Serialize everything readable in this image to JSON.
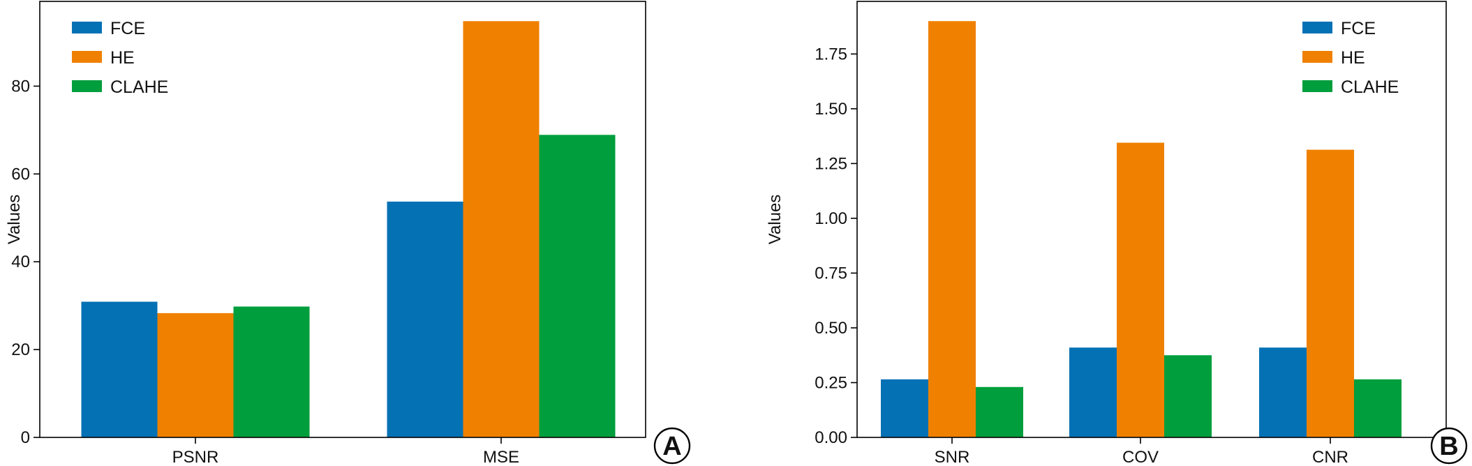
{
  "colors": {
    "FCE": "#0571b5",
    "HE": "#f08000",
    "CLAHE": "#009e3c"
  },
  "chart_data": [
    {
      "type": "bar",
      "panel_label": "A",
      "title": "",
      "xlabel": "",
      "ylabel": "Values",
      "categories": [
        "PSNR",
        "MSE"
      ],
      "series": [
        {
          "name": "FCE",
          "values": [
            30.9,
            53.7
          ]
        },
        {
          "name": "HE",
          "values": [
            28.3,
            94.8
          ]
        },
        {
          "name": "CLAHE",
          "values": [
            29.8,
            68.9
          ]
        }
      ],
      "ylim": [
        0,
        99.3
      ],
      "yticks": [
        0,
        20,
        40,
        60,
        80
      ],
      "ytick_labels": [
        "0",
        "20",
        "40",
        "60",
        "80"
      ],
      "legend": "top-left",
      "grid": false
    },
    {
      "type": "bar",
      "panel_label": "B",
      "title": "",
      "xlabel": "",
      "ylabel": "Values",
      "categories": [
        "SNR",
        "COV",
        "CNR"
      ],
      "series": [
        {
          "name": "FCE",
          "values": [
            0.265,
            0.41,
            0.41
          ]
        },
        {
          "name": "HE",
          "values": [
            1.9,
            1.345,
            1.313
          ]
        },
        {
          "name": "CLAHE",
          "values": [
            0.23,
            0.375,
            0.265
          ]
        }
      ],
      "ylim": [
        0,
        1.99
      ],
      "yticks": [
        0,
        0.25,
        0.5,
        0.75,
        1.0,
        1.25,
        1.5,
        1.75
      ],
      "ytick_labels": [
        "0.00",
        "0.25",
        "0.50",
        "0.75",
        "1.00",
        "1.25",
        "1.50",
        "1.75"
      ],
      "legend": "top-right",
      "grid": false
    }
  ]
}
